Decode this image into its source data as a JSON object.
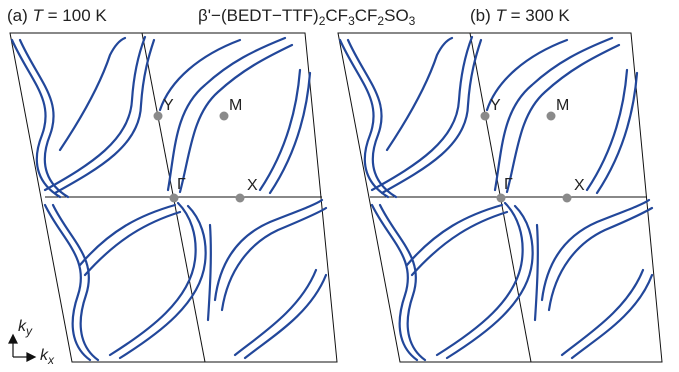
{
  "title": {
    "prefix": "β'−(BEDT−TTF)",
    "s1": "2",
    "mid1": "CF",
    "s2": "3",
    "mid2": "CF",
    "s3": "2",
    "mid3": "SO",
    "s4": "3"
  },
  "panels": [
    {
      "id": "a",
      "tag": "(a)",
      "var": "T",
      "eq": "= 100 K",
      "points": {
        "Y": "Y",
        "M": "M",
        "Gamma": "Γ",
        "X": "X"
      }
    },
    {
      "id": "b",
      "tag": "(b)",
      "var": "T",
      "eq": "= 300 K",
      "points": {
        "Y": "Y",
        "M": "M",
        "Gamma": "Γ",
        "X": "X"
      }
    }
  ],
  "axes": {
    "ky": "k",
    "ky_sub": "y",
    "kx": "k",
    "kx_sub": "x"
  },
  "colors": {
    "fermi_surface": "#22479a",
    "grid": "#111111",
    "symmetry_point": "#8a8a8a"
  }
}
